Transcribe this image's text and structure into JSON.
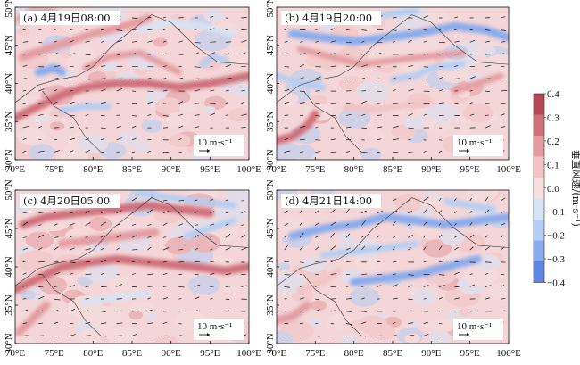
{
  "chart_data": [
    {
      "type": "heatmap",
      "panel": "a",
      "title": "(a) 4月19日08:00",
      "x_ticks": [
        "70°E",
        "75°E",
        "80°E",
        "85°E",
        "90°E",
        "95°E",
        "100°E"
      ],
      "y_ticks": [
        "30°N",
        "35°N",
        "40°N",
        "45°N",
        "50°N"
      ],
      "xlim": [
        70,
        100
      ],
      "ylim": [
        30,
        50
      ],
      "reference_vector": "10 m·s⁻¹",
      "bands": [
        {
          "path": [
            [
              70,
              35.5
            ],
            [
              73,
              37
            ],
            [
              76,
              38.5
            ],
            [
              79,
              39.5
            ],
            [
              83,
              40
            ],
            [
              87,
              40
            ],
            [
              91,
              39.5
            ],
            [
              95,
              40
            ],
            [
              100,
              41
            ]
          ],
          "value": 0.3
        },
        {
          "path": [
            [
              71,
              43.5
            ],
            [
              74,
              44.5
            ],
            [
              77,
              45.5
            ],
            [
              80,
              46.5
            ],
            [
              84,
              47.5
            ],
            [
              87,
              48.5
            ]
          ],
          "value": 0.25
        },
        {
          "path": [
            [
              79,
              42
            ],
            [
              82,
              43.5
            ],
            [
              86,
              44
            ],
            [
              89,
              42.5
            ],
            [
              91,
              41.5
            ]
          ],
          "value": 0.2
        },
        {
          "path": [
            [
              73,
              41.5
            ],
            [
              75,
              42
            ],
            [
              76,
              41.5
            ]
          ],
          "value": -0.25
        },
        {
          "path": [
            [
              94,
              42.5
            ],
            [
              95.5,
              43.5
            ],
            [
              97,
              43
            ]
          ],
          "value": -0.2
        },
        {
          "path": [
            [
              76,
              36.5
            ],
            [
              79,
              37
            ],
            [
              82,
              37
            ]
          ],
          "value": -0.15
        },
        {
          "path": [
            [
              86,
              47
            ],
            [
              90,
              48
            ],
            [
              94,
              47.5
            ],
            [
              98,
              46.5
            ]
          ],
          "value": -0.1
        },
        {
          "path": [
            [
              70.5,
              48.5
            ],
            [
              72,
              49.5
            ],
            [
              75,
              49.5
            ]
          ],
          "value": 0.2
        }
      ]
    },
    {
      "type": "heatmap",
      "panel": "b",
      "title": "(b) 4月19日20:00",
      "x_ticks": [
        "70°E",
        "75°E",
        "80°E",
        "85°E",
        "90°E",
        "95°E",
        "100°E"
      ],
      "y_ticks": [
        "30°N",
        "35°N",
        "40°N",
        "45°N",
        "50°N"
      ],
      "xlim": [
        70,
        100
      ],
      "ylim": [
        30,
        50
      ],
      "reference_vector": "10 m·s⁻¹",
      "bands": [
        {
          "path": [
            [
              72,
              46.5
            ],
            [
              76,
              46
            ],
            [
              80,
              45.5
            ],
            [
              84,
              46
            ],
            [
              88,
              46.5
            ],
            [
              93,
              47.5
            ],
            [
              97,
              47
            ],
            [
              100,
              46
            ]
          ],
          "value": -0.25
        },
        {
          "path": [
            [
              73,
              44.5
            ],
            [
              77,
              43.5
            ],
            [
              81,
              42.5
            ],
            [
              85,
              43
            ],
            [
              89,
              43.5
            ],
            [
              94,
              44
            ]
          ],
          "value": 0.2
        },
        {
          "path": [
            [
              70,
              41
            ],
            [
              73,
              40
            ],
            [
              76,
              39.5
            ]
          ],
          "value": -0.15
        },
        {
          "path": [
            [
              70,
              32.5
            ],
            [
              72,
              33
            ],
            [
              74,
              34.5
            ],
            [
              75,
              36
            ]
          ],
          "value": 0.3
        },
        {
          "path": [
            [
              85,
              40.5
            ],
            [
              88,
              41
            ],
            [
              90,
              42
            ],
            [
              94,
              42.5
            ]
          ],
          "value": -0.2
        },
        {
          "path": [
            [
              79,
              37
            ],
            [
              82,
              36.5
            ],
            [
              86,
              37
            ],
            [
              90,
              37.5
            ]
          ],
          "value": 0.15
        },
        {
          "path": [
            [
              93,
              39
            ],
            [
              96,
              40
            ],
            [
              99,
              41
            ]
          ],
          "value": 0.2
        },
        {
          "path": [
            [
              80,
              48.5
            ],
            [
              84,
              49
            ],
            [
              88,
              49.5
            ]
          ],
          "value": -0.2
        }
      ]
    },
    {
      "type": "heatmap",
      "panel": "c",
      "title": "(c) 4月20日05:00",
      "x_ticks": [
        "70°E",
        "75°E",
        "80°E",
        "85°E",
        "90°E",
        "95°E",
        "100°E"
      ],
      "y_ticks": [
        "30°N",
        "35°N",
        "40°N",
        "45°N",
        "50°N"
      ],
      "xlim": [
        70,
        100
      ],
      "ylim": [
        30,
        50
      ],
      "reference_vector": "10 m·s⁻¹",
      "bands": [
        {
          "path": [
            [
              70,
              37
            ],
            [
              73,
              38.5
            ],
            [
              76,
              40
            ],
            [
              79,
              40.5
            ],
            [
              83,
              41
            ],
            [
              88,
              40.5
            ],
            [
              93,
              40
            ],
            [
              97,
              39.5
            ],
            [
              100,
              40
            ]
          ],
          "value": 0.3
        },
        {
          "path": [
            [
              71,
              45.5
            ],
            [
              74,
              46.5
            ],
            [
              78,
              47
            ],
            [
              83,
              47.5
            ],
            [
              87,
              48
            ],
            [
              91,
              47.5
            ],
            [
              95,
              47
            ]
          ],
          "value": 0.3
        },
        {
          "path": [
            [
              76,
              43
            ],
            [
              80,
              43.5
            ],
            [
              84,
              44
            ],
            [
              88,
              44.5
            ]
          ],
          "value": 0.25
        },
        {
          "path": [
            [
              86,
              49.5
            ],
            [
              90,
              49
            ],
            [
              94,
              48.5
            ],
            [
              98,
              48
            ]
          ],
          "value": -0.2
        },
        {
          "path": [
            [
              92,
              44
            ],
            [
              95,
              45
            ],
            [
              98,
              46
            ]
          ],
          "value": -0.15
        },
        {
          "path": [
            [
              70.5,
              31.5
            ],
            [
              72,
              33
            ],
            [
              74,
              35
            ]
          ],
          "value": 0.25
        },
        {
          "path": [
            [
              79,
              35.5
            ],
            [
              83,
              36
            ],
            [
              87,
              36.5
            ]
          ],
          "value": -0.1
        }
      ]
    },
    {
      "type": "heatmap",
      "panel": "d",
      "title": "(d) 4月21日14:00",
      "x_ticks": [
        "70°E",
        "75°E",
        "80°E",
        "85°E",
        "90°E",
        "95°E",
        "100°E"
      ],
      "y_ticks": [
        "30°N",
        "35°N",
        "40°N",
        "45°N",
        "50°N"
      ],
      "xlim": [
        70,
        100
      ],
      "ylim": [
        30,
        50
      ],
      "reference_vector": "10 m·s⁻¹",
      "bands": [
        {
          "path": [
            [
              72,
              44
            ],
            [
              76,
              45
            ],
            [
              80,
              45.5
            ],
            [
              84,
              46.5
            ],
            [
              88,
              46
            ],
            [
              92,
              45.5
            ],
            [
              96,
              46
            ],
            [
              100,
              46.5
            ]
          ],
          "value": -0.3
        },
        {
          "path": [
            [
              76,
              41.5
            ],
            [
              80,
              42
            ],
            [
              84,
              42.5
            ],
            [
              88,
              43
            ]
          ],
          "value": -0.2
        },
        {
          "path": [
            [
              80,
              38
            ],
            [
              84,
              38.5
            ],
            [
              88,
              39
            ],
            [
              92,
              40
            ],
            [
              96,
              41
            ]
          ],
          "value": -0.25
        },
        {
          "path": [
            [
              70,
              33
            ],
            [
              72,
              33.5
            ],
            [
              74,
              35
            ]
          ],
          "value": 0.25
        },
        {
          "path": [
            [
              73,
              37
            ],
            [
              76,
              38
            ],
            [
              78,
              39.5
            ]
          ],
          "value": 0.15
        },
        {
          "path": [
            [
              92,
              48.5
            ],
            [
              95,
              48
            ],
            [
              98,
              47.5
            ]
          ],
          "value": -0.2
        }
      ]
    }
  ],
  "colorbar": {
    "title": "垂直风速/(m·s⁻¹)",
    "tick_labels": [
      "0.4",
      "0.3",
      "0.2",
      "0.1",
      "0.0",
      "−0.1",
      "−0.2",
      "−0.3",
      "−0.4"
    ],
    "colors_top_to_bottom": [
      "#b14757",
      "#cf6f7a",
      "#e49ca2",
      "#f1c3c5",
      "#f7dfdf",
      "#d7e4f6",
      "#b4cdf2",
      "#8aabec",
      "#5f84e2"
    ]
  }
}
